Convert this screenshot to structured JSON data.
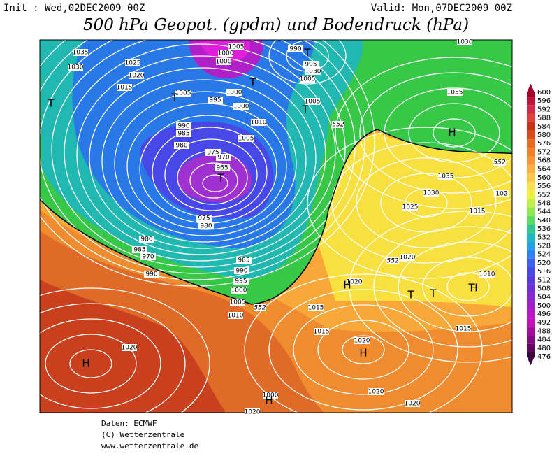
{
  "header": {
    "init": "Init : Wed,02DEC2009 00Z",
    "valid": "Valid: Mon,07DEC2009 00Z",
    "title": "500 hPa Geopot. (gpdm) und Bodendruck (hPa)"
  },
  "colorbar": {
    "levels": [
      600,
      596,
      592,
      588,
      584,
      580,
      576,
      572,
      568,
      564,
      560,
      556,
      552,
      548,
      544,
      540,
      536,
      532,
      528,
      524,
      520,
      516,
      512,
      508,
      504,
      500,
      496,
      492,
      488,
      484,
      480,
      476
    ],
    "colors": [
      "#a0002a",
      "#c0143c",
      "#d42a4a",
      "#e0403c",
      "#c83214",
      "#d84a1e",
      "#e86a28",
      "#f08030",
      "#f89838",
      "#fcb040",
      "#fcc848",
      "#fce050",
      "#f0f040",
      "#c0f048",
      "#90e858",
      "#60d868",
      "#30c890",
      "#20b8c0",
      "#28a0e0",
      "#3080f0",
      "#3c60f0",
      "#4848e8",
      "#5838e0",
      "#7030d8",
      "#8828d0",
      "#a020c8",
      "#b818c0",
      "#c810b0",
      "#a0109a",
      "#800c80",
      "#600860",
      "#400440"
    ]
  },
  "map": {
    "isobar_labels": [
      1035,
      1030,
      1025,
      1020,
      1015,
      1005,
      995,
      1000,
      1000,
      1010,
      990,
      985,
      980,
      975,
      970,
      965,
      975,
      980,
      980,
      985,
      970,
      990,
      985,
      990,
      995,
      1000,
      1005,
      1010,
      1005,
      1005,
      1000,
      1000,
      990,
      995,
      1030,
      1005,
      1005,
      1035,
      1035,
      1030,
      1025,
      1015,
      1020,
      1020,
      1015,
      1015,
      1020,
      1020,
      1000,
      1020,
      1020,
      1020,
      1010,
      1015,
      1030,
      102
    ],
    "geopotential_labels": [
      552,
      552,
      552,
      552
    ],
    "pressure_centers": [
      "T",
      "T",
      "T",
      "T",
      "T",
      "T",
      "H",
      "H",
      "H",
      "T",
      "T",
      "T",
      "H",
      "H",
      "H"
    ]
  },
  "footer": {
    "source": "Daten: ECMWF",
    "copyright": "(C) Wetterzentrale",
    "url": "www.wetterzentrale.de"
  }
}
